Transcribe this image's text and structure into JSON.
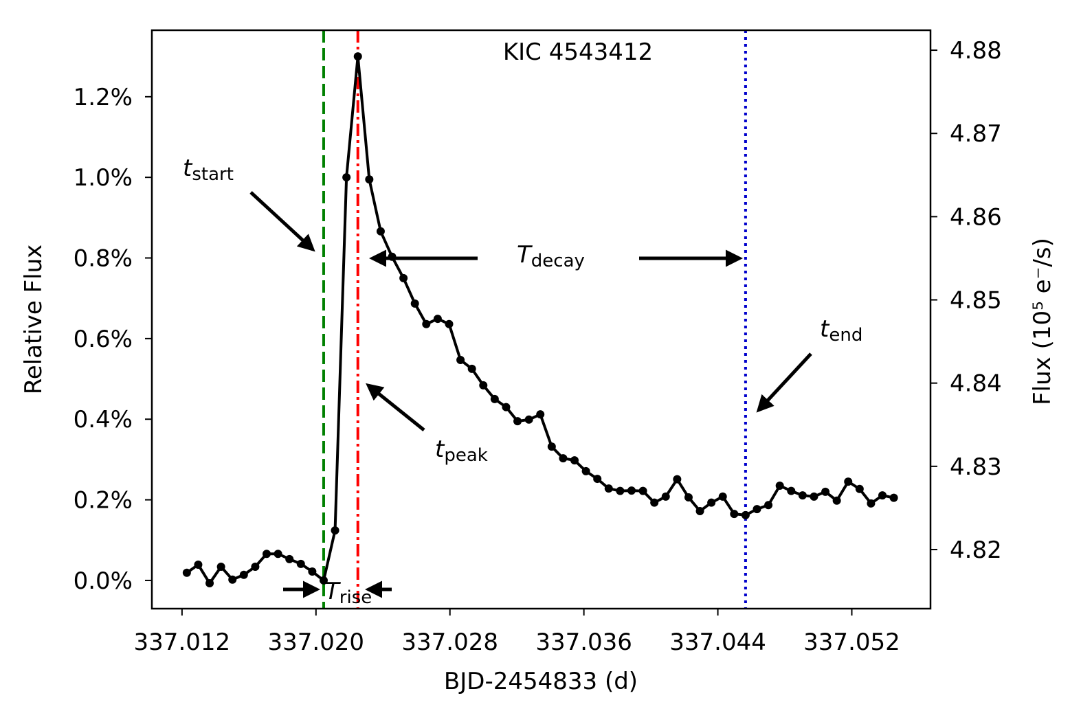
{
  "chart_data": {
    "type": "line",
    "title": "KIC 4543412",
    "xlabel": "BJD-2454833 (d)",
    "ylabel": "Relative Flux",
    "y2label": "Flux (10⁵ e⁻/s)",
    "x": [
      337.012287,
      337.012968,
      337.013649,
      337.01433,
      337.015011,
      337.015692,
      337.016373,
      337.017054,
      337.017735,
      337.018416,
      337.019097,
      337.019778,
      337.020459,
      337.02114,
      337.021821,
      337.022502,
      337.023183,
      337.023864,
      337.024545,
      337.025226,
      337.025907,
      337.026588,
      337.027269,
      337.02795,
      337.028631,
      337.029312,
      337.029993,
      337.030674,
      337.031355,
      337.032036,
      337.032717,
      337.033398,
      337.034079,
      337.03476,
      337.035441,
      337.036122,
      337.036803,
      337.037484,
      337.038165,
      337.038846,
      337.039527,
      337.040208,
      337.040889,
      337.04157,
      337.042251,
      337.042932,
      337.043613,
      337.044294,
      337.044975,
      337.045656,
      337.046337,
      337.047018,
      337.047699,
      337.04838,
      337.049061,
      337.049742,
      337.050423,
      337.051104,
      337.051785,
      337.052466,
      337.053147,
      337.053828,
      337.054509
    ],
    "series": [
      {
        "name": "Relative Flux",
        "color": "#000000",
        "values": [
          0.019,
          0.039,
          -0.007,
          0.034,
          0.002,
          0.014,
          0.034,
          0.066,
          0.066,
          0.053,
          0.041,
          0.022,
          0.0,
          0.124,
          1.0,
          1.3,
          0.995,
          0.866,
          0.803,
          0.75,
          0.687,
          0.636,
          0.649,
          0.636,
          0.547,
          0.525,
          0.484,
          0.45,
          0.43,
          0.395,
          0.399,
          0.412,
          0.332,
          0.303,
          0.298,
          0.271,
          0.252,
          0.228,
          0.222,
          0.223,
          0.222,
          0.193,
          0.208,
          0.251,
          0.206,
          0.172,
          0.193,
          0.208,
          0.165,
          0.162,
          0.177,
          0.187,
          0.235,
          0.222,
          0.211,
          0.208,
          0.22,
          0.198,
          0.245,
          0.227,
          0.191,
          0.211,
          0.205
        ]
      }
    ],
    "xlim": [
      337.0102,
      337.0567
    ],
    "xticks": [
      337.012,
      {
        "value": 337.02,
        "label": "337.020"
      },
      337.028,
      337.036,
      337.044,
      337.052
    ],
    "ylim": [
      -0.07,
      1.365
    ],
    "yticks": [
      {
        "value": 0,
        "label": "0.0%"
      },
      {
        "value": 0.2,
        "label": "0.2%"
      },
      {
        "value": 0.4,
        "label": "0.4%"
      },
      {
        "value": 0.6,
        "label": "0.6%"
      },
      {
        "value": 0.8,
        "label": "0.8%"
      },
      {
        "value": 1.0,
        "label": "1.0%"
      },
      {
        "value": 1.2,
        "label": "1.2%"
      }
    ],
    "y2lim": [
      4.8129,
      4.8824
    ],
    "y2ticks": [
      4.82,
      4.83,
      4.84,
      4.85,
      4.86,
      4.87,
      4.88
    ],
    "vlines": [
      {
        "x": 337.020459,
        "color": "#008000",
        "style": "dashed"
      },
      {
        "x": 337.022502,
        "color": "#ff0000",
        "style": "dashdot"
      },
      {
        "x": 337.045656,
        "color": "#0000cc",
        "style": "dotted"
      }
    ],
    "annotations": [
      {
        "text": "t",
        "sub": "start"
      },
      {
        "text": "t",
        "sub": "peak"
      },
      {
        "text": "t",
        "sub": "end"
      },
      {
        "text": "T",
        "sub": "decay"
      },
      {
        "text": "T",
        "sub": "rise"
      }
    ]
  }
}
